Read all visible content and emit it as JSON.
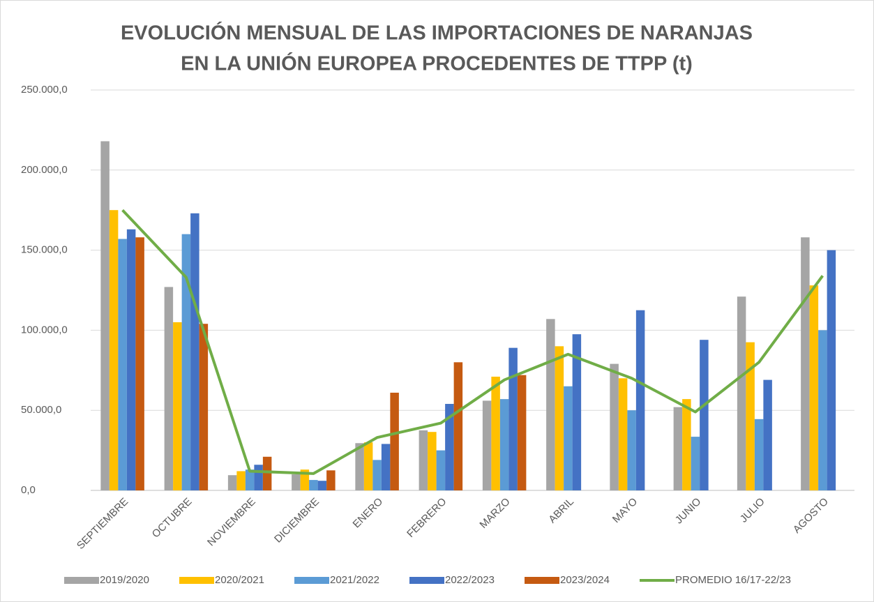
{
  "chart_data": {
    "type": "bar_line",
    "title": [
      "EVOLUCIÓN MENSUAL DE LAS IMPORTACIONES DE NARANJAS",
      "EN LA UNIÓN EUROPEA PROCEDENTES DE TTPP (t)"
    ],
    "categories": [
      "SEPTIEMBRE",
      "OCTUBRE",
      "NOVIEMBRE",
      "DICIEMBRE",
      "ENERO",
      "FEBRERO",
      "MARZO",
      "ABRIL",
      "MAYO",
      "JUNIO",
      "JULIO",
      "AGOSTO"
    ],
    "series": [
      {
        "name": "2019/2020",
        "color": "#a5a5a5",
        "kind": "bar",
        "values": [
          218000,
          127000,
          9500,
          10000,
          29500,
          37500,
          56000,
          107000,
          79000,
          52000,
          121000,
          158000
        ]
      },
      {
        "name": "2020/2021",
        "color": "#ffc000",
        "kind": "bar",
        "values": [
          175000,
          105000,
          12000,
          13000,
          30000,
          36500,
          71000,
          90000,
          70000,
          57000,
          92500,
          128000
        ]
      },
      {
        "name": "2021/2022",
        "color": "#5b9bd5",
        "kind": "bar",
        "values": [
          157000,
          160000,
          13000,
          6500,
          19000,
          25000,
          57000,
          65000,
          50000,
          33500,
          44500,
          100000
        ]
      },
      {
        "name": "2022/2023",
        "color": "#4472c4",
        "kind": "bar",
        "values": [
          163000,
          173000,
          16000,
          6000,
          29000,
          54000,
          89000,
          97500,
          112500,
          94000,
          69000,
          150000
        ]
      },
      {
        "name": "2023/2024",
        "color": "#c55a11",
        "kind": "bar",
        "values": [
          158000,
          104000,
          21000,
          12500,
          61000,
          80000,
          72000,
          null,
          null,
          null,
          null,
          null
        ]
      },
      {
        "name": "PROMEDIO 16/17-22/23",
        "color": "#70ad47",
        "kind": "line",
        "values": [
          175000,
          133000,
          12000,
          10500,
          33000,
          42000,
          69000,
          85000,
          70000,
          49000,
          80000,
          134000
        ]
      }
    ],
    "ylim": [
      0,
      250000
    ],
    "yticks": [
      {
        "value": 0,
        "label": "0,0"
      },
      {
        "value": 50000,
        "label": "50.000,0"
      },
      {
        "value": 100000,
        "label": "100.000,0"
      },
      {
        "value": 150000,
        "label": "150.000,0"
      },
      {
        "value": 200000,
        "label": "200.000,0"
      },
      {
        "value": 250000,
        "label": "250.000,0"
      }
    ],
    "grid": true,
    "legend": "bottom"
  }
}
